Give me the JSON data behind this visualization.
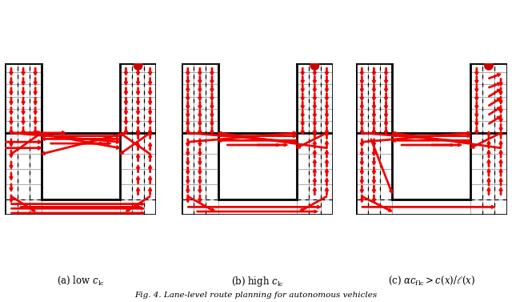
{
  "subfig_labels": [
    "(a) low $c_{\\mathrm{lc}}$",
    "(b) high $c_{\\mathrm{lc}}$",
    "(c) $\\alpha c_{\\mathrm{flc}} > c(x)/\\ell(x)$"
  ],
  "caption": "Fig. 4. Lane-level route planning for autonomous vehicles",
  "bg_color": "#ffffff",
  "road_color": "#000000",
  "grid_color": "#aaaaaa",
  "arrow_color": "#ee0000",
  "dot_color": "#cc0000",
  "fig_width": 6.4,
  "fig_height": 3.77
}
